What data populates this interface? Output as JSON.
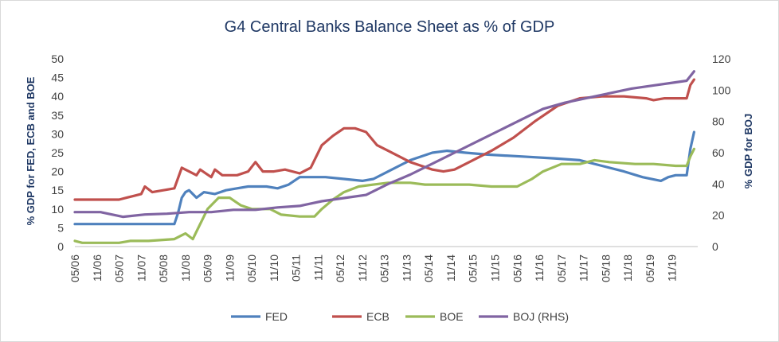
{
  "chart_data": {
    "type": "line",
    "title": "G4 Central Banks Balance Sheet as % of GDP",
    "ylabel_left": "% GDP for FED, ECB and BOE",
    "ylabel_right": "% GDP for BOJ",
    "ylim_left": [
      0,
      50
    ],
    "ylim_right": [
      0,
      120
    ],
    "yticks_left": [
      "0",
      "5",
      "10",
      "15",
      "20",
      "25",
      "30",
      "35",
      "40",
      "45",
      "50"
    ],
    "yticks_right": [
      "0",
      "20",
      "40",
      "60",
      "80",
      "100",
      "120"
    ],
    "x_range": [
      "2006-05",
      "2020-06"
    ],
    "xticks": [
      {
        "date": "2006-05",
        "label": "05/06"
      },
      {
        "date": "2006-11",
        "label": "11/06"
      },
      {
        "date": "2007-05",
        "label": "05/07"
      },
      {
        "date": "2007-11",
        "label": "11/07"
      },
      {
        "date": "2008-05",
        "label": "05/08"
      },
      {
        "date": "2008-11",
        "label": "11/08"
      },
      {
        "date": "2009-05",
        "label": "05/09"
      },
      {
        "date": "2009-11",
        "label": "11/09"
      },
      {
        "date": "2010-05",
        "label": "05/10"
      },
      {
        "date": "2010-11",
        "label": "11/10"
      },
      {
        "date": "2011-05",
        "label": "05/11"
      },
      {
        "date": "2011-11",
        "label": "11/11"
      },
      {
        "date": "2012-05",
        "label": "05/12"
      },
      {
        "date": "2012-11",
        "label": "11/12"
      },
      {
        "date": "2013-05",
        "label": "05/13"
      },
      {
        "date": "2013-11",
        "label": "11/13"
      },
      {
        "date": "2014-05",
        "label": "05/14"
      },
      {
        "date": "2014-11",
        "label": "11/14"
      },
      {
        "date": "2015-05",
        "label": "05/15"
      },
      {
        "date": "2015-11",
        "label": "11/15"
      },
      {
        "date": "2016-05",
        "label": "05/16"
      },
      {
        "date": "2016-11",
        "label": "11/16"
      },
      {
        "date": "2017-05",
        "label": "05/17"
      },
      {
        "date": "2017-11",
        "label": "11/17"
      },
      {
        "date": "2018-05",
        "label": "05/18"
      },
      {
        "date": "2018-11",
        "label": "11/18"
      },
      {
        "date": "2019-05",
        "label": "05/19"
      },
      {
        "date": "2019-11",
        "label": "11/19"
      }
    ],
    "grid": false,
    "legend_position": "bottom",
    "series": [
      {
        "name": "FED",
        "axis": "left",
        "color": "#4f81bd",
        "points": [
          [
            "2006-05",
            6
          ],
          [
            "2007-05",
            6
          ],
          [
            "2008-01",
            6
          ],
          [
            "2008-08",
            6
          ],
          [
            "2008-09",
            9
          ],
          [
            "2008-10",
            13
          ],
          [
            "2008-11",
            14.5
          ],
          [
            "2008-12",
            15
          ],
          [
            "2009-02",
            13
          ],
          [
            "2009-04",
            14.5
          ],
          [
            "2009-07",
            14
          ],
          [
            "2009-10",
            15
          ],
          [
            "2010-01",
            15.5
          ],
          [
            "2010-04",
            16
          ],
          [
            "2010-09",
            16
          ],
          [
            "2010-12",
            15.5
          ],
          [
            "2011-03",
            16.5
          ],
          [
            "2011-06",
            18.5
          ],
          [
            "2011-09",
            18.5
          ],
          [
            "2012-01",
            18.5
          ],
          [
            "2012-06",
            18
          ],
          [
            "2012-11",
            17.5
          ],
          [
            "2013-02",
            18
          ],
          [
            "2013-06",
            20
          ],
          [
            "2013-12",
            23
          ],
          [
            "2014-06",
            25
          ],
          [
            "2014-10",
            25.5
          ],
          [
            "2015-03",
            25
          ],
          [
            "2015-09",
            24.5
          ],
          [
            "2016-06",
            24
          ],
          [
            "2017-03",
            23.5
          ],
          [
            "2017-10",
            23
          ],
          [
            "2018-04",
            21.5
          ],
          [
            "2018-10",
            20
          ],
          [
            "2019-03",
            18.5
          ],
          [
            "2019-08",
            17.5
          ],
          [
            "2019-10",
            18.5
          ],
          [
            "2019-12",
            19
          ],
          [
            "2020-03",
            19
          ],
          [
            "2020-04",
            26
          ],
          [
            "2020-05",
            30.5
          ]
        ]
      },
      {
        "name": "ECB",
        "axis": "left",
        "color": "#c0504d",
        "points": [
          [
            "2006-05",
            12.5
          ],
          [
            "2007-05",
            12.5
          ],
          [
            "2007-07",
            13
          ],
          [
            "2007-09",
            13.5
          ],
          [
            "2007-11",
            14
          ],
          [
            "2007-12",
            16
          ],
          [
            "2008-02",
            14.5
          ],
          [
            "2008-05",
            15
          ],
          [
            "2008-08",
            15.5
          ],
          [
            "2008-10",
            21
          ],
          [
            "2008-12",
            20
          ],
          [
            "2009-02",
            19
          ],
          [
            "2009-03",
            20.5
          ],
          [
            "2009-06",
            18.5
          ],
          [
            "2009-07",
            20.5
          ],
          [
            "2009-09",
            19
          ],
          [
            "2010-01",
            19
          ],
          [
            "2010-04",
            20
          ],
          [
            "2010-06",
            22.5
          ],
          [
            "2010-08",
            20
          ],
          [
            "2010-11",
            20
          ],
          [
            "2011-02",
            20.5
          ],
          [
            "2011-06",
            19.5
          ],
          [
            "2011-09",
            21
          ],
          [
            "2011-12",
            27
          ],
          [
            "2012-03",
            29.5
          ],
          [
            "2012-06",
            31.5
          ],
          [
            "2012-09",
            31.5
          ],
          [
            "2012-12",
            30.5
          ],
          [
            "2013-03",
            27
          ],
          [
            "2013-06",
            25.5
          ],
          [
            "2013-09",
            24
          ],
          [
            "2013-12",
            22.5
          ],
          [
            "2014-03",
            21.5
          ],
          [
            "2014-06",
            20.5
          ],
          [
            "2014-09",
            20
          ],
          [
            "2014-12",
            20.5
          ],
          [
            "2015-04",
            22.5
          ],
          [
            "2015-10",
            25.5
          ],
          [
            "2016-04",
            29
          ],
          [
            "2016-10",
            33.5
          ],
          [
            "2017-04",
            37.5
          ],
          [
            "2017-10",
            39.5
          ],
          [
            "2018-04",
            40
          ],
          [
            "2018-10",
            40
          ],
          [
            "2019-04",
            39.5
          ],
          [
            "2019-06",
            39
          ],
          [
            "2019-09",
            39.5
          ],
          [
            "2020-01",
            39.5
          ],
          [
            "2020-03",
            39.5
          ],
          [
            "2020-04",
            43
          ],
          [
            "2020-05",
            44.5
          ]
        ]
      },
      {
        "name": "BOE",
        "axis": "left",
        "color": "#9bbb59",
        "points": [
          [
            "2006-05",
            1.5
          ],
          [
            "2006-07",
            1
          ],
          [
            "2007-01",
            1
          ],
          [
            "2007-05",
            1
          ],
          [
            "2007-08",
            1.5
          ],
          [
            "2008-01",
            1.5
          ],
          [
            "2008-08",
            2
          ],
          [
            "2008-10",
            3
          ],
          [
            "2008-11",
            3.5
          ],
          [
            "2009-01",
            2
          ],
          [
            "2009-02",
            4
          ],
          [
            "2009-05",
            10
          ],
          [
            "2009-08",
            13
          ],
          [
            "2009-11",
            13
          ],
          [
            "2010-02",
            11
          ],
          [
            "2010-05",
            10
          ],
          [
            "2010-10",
            10
          ],
          [
            "2011-01",
            8.5
          ],
          [
            "2011-06",
            8
          ],
          [
            "2011-10",
            8
          ],
          [
            "2011-12",
            10
          ],
          [
            "2012-03",
            12.5
          ],
          [
            "2012-06",
            14.5
          ],
          [
            "2012-10",
            16
          ],
          [
            "2013-02",
            16.5
          ],
          [
            "2013-06",
            17
          ],
          [
            "2013-12",
            17
          ],
          [
            "2014-04",
            16.5
          ],
          [
            "2014-10",
            16.5
          ],
          [
            "2015-04",
            16.5
          ],
          [
            "2015-10",
            16
          ],
          [
            "2016-05",
            16
          ],
          [
            "2016-09",
            18
          ],
          [
            "2016-12",
            20
          ],
          [
            "2017-05",
            22
          ],
          [
            "2017-10",
            22
          ],
          [
            "2018-02",
            23
          ],
          [
            "2018-06",
            22.5
          ],
          [
            "2019-01",
            22
          ],
          [
            "2019-06",
            22
          ],
          [
            "2019-12",
            21.5
          ],
          [
            "2020-03",
            21.5
          ],
          [
            "2020-04",
            24
          ],
          [
            "2020-05",
            26
          ]
        ]
      },
      {
        "name": "BOJ (RHS)",
        "axis": "right",
        "color": "#8064a2",
        "points": [
          [
            "2006-05",
            22
          ],
          [
            "2006-12",
            22
          ],
          [
            "2007-06",
            19
          ],
          [
            "2007-12",
            20.5
          ],
          [
            "2008-06",
            21
          ],
          [
            "2008-12",
            22
          ],
          [
            "2009-06",
            22
          ],
          [
            "2009-12",
            23.5
          ],
          [
            "2010-06",
            23.5
          ],
          [
            "2010-12",
            25
          ],
          [
            "2011-06",
            26
          ],
          [
            "2011-12",
            29
          ],
          [
            "2012-06",
            31
          ],
          [
            "2012-12",
            33
          ],
          [
            "2013-06",
            40
          ],
          [
            "2013-12",
            46
          ],
          [
            "2014-06",
            53
          ],
          [
            "2014-12",
            60
          ],
          [
            "2015-06",
            67
          ],
          [
            "2015-12",
            74
          ],
          [
            "2016-06",
            81
          ],
          [
            "2016-12",
            88
          ],
          [
            "2017-06",
            92
          ],
          [
            "2017-12",
            95
          ],
          [
            "2018-06",
            98
          ],
          [
            "2018-12",
            101
          ],
          [
            "2019-06",
            103
          ],
          [
            "2019-12",
            105
          ],
          [
            "2020-03",
            106
          ],
          [
            "2020-05",
            112
          ]
        ]
      }
    ]
  }
}
